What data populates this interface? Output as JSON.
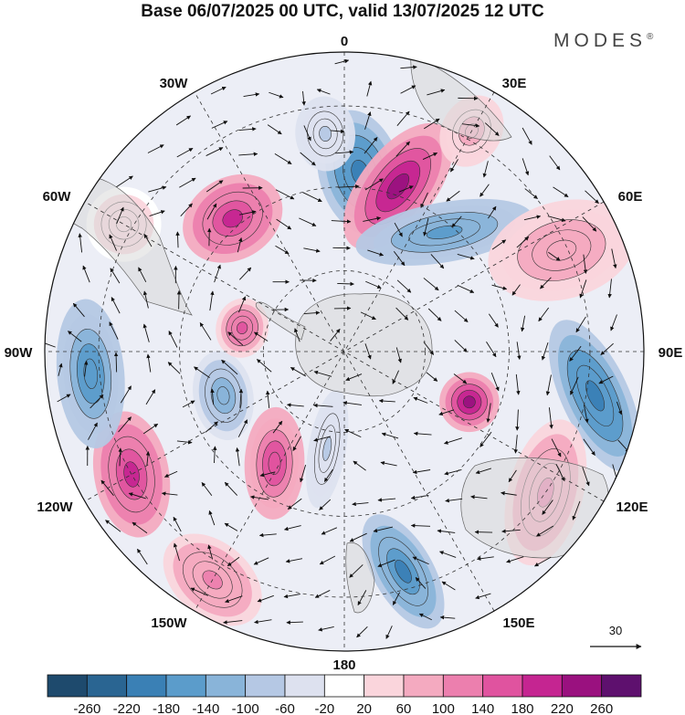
{
  "title": "Base 06/07/2025 00 UTC, valid 13/07/2025 12 UTC",
  "brand": {
    "name": "MODES",
    "mark": "®"
  },
  "map": {
    "projection": "south-polar-stereographic",
    "longitude_labels": [
      "0",
      "30E",
      "60E",
      "90E",
      "120E",
      "150E",
      "180",
      "150W",
      "120W",
      "90W",
      "60W",
      "30W"
    ],
    "field": "geopotential height anomaly with wind vectors",
    "reference_vector": {
      "value": "30"
    }
  },
  "colorbar": {
    "ticks": [
      "-260",
      "-220",
      "-180",
      "-140",
      "-100",
      "-60",
      "-20",
      "20",
      "60",
      "100",
      "140",
      "180",
      "220",
      "260"
    ],
    "colors": [
      "#1e4a6d",
      "#2a6592",
      "#3a80b5",
      "#5b9ccb",
      "#89b4d9",
      "#b5c8e4",
      "#dde1ef",
      "#ffffff",
      "#fad5dc",
      "#f4aac0",
      "#ec7fae",
      "#e0539f",
      "#c52591",
      "#9a117f",
      "#5e106e"
    ]
  },
  "anomalies": [
    {
      "lon": 5,
      "r": 0.6,
      "rx": 0.11,
      "ry": 0.17,
      "rot": -20,
      "v": -200
    },
    {
      "lon": 18,
      "r": 0.58,
      "rx": 0.1,
      "ry": 0.2,
      "rot": 20,
      "v": 230
    },
    {
      "lon": 40,
      "r": 0.52,
      "rx": 0.08,
      "ry": 0.24,
      "rot": 40,
      "v": -150
    },
    {
      "lon": 65,
      "r": 0.8,
      "rx": 0.13,
      "ry": 0.2,
      "rot": 10,
      "v": 90
    },
    {
      "lon": 100,
      "r": 0.85,
      "rx": 0.09,
      "ry": 0.22,
      "rot": 55,
      "v": -200
    },
    {
      "lon": 112,
      "r": 0.45,
      "rx": 0.08,
      "ry": 0.08,
      "rot": 0,
      "v": 240
    },
    {
      "lon": 125,
      "r": 0.82,
      "rx": 0.2,
      "ry": 0.1,
      "rot": -20,
      "v": 110
    },
    {
      "lon": 165,
      "r": 0.76,
      "rx": 0.08,
      "ry": 0.17,
      "rot": -15,
      "v": -190
    },
    {
      "lon": 190,
      "r": 0.33,
      "rx": 0.05,
      "ry": 0.16,
      "rot": 0,
      "v": -60
    },
    {
      "lon": 210,
      "r": 0.88,
      "rx": 0.15,
      "ry": 0.1,
      "rot": 10,
      "v": 110
    },
    {
      "lon": 212,
      "r": 0.44,
      "rx": 0.08,
      "ry": 0.15,
      "rot": -30,
      "v": 180
    },
    {
      "lon": 240,
      "r": 0.82,
      "rx": 0.17,
      "ry": 0.1,
      "rot": 20,
      "v": 190
    },
    {
      "lon": 250,
      "r": 0.43,
      "rx": 0.12,
      "ry": 0.08,
      "rot": 10,
      "v": -120
    },
    {
      "lon": 265,
      "r": 0.85,
      "rx": 0.2,
      "ry": 0.09,
      "rot": 0,
      "v": -170
    },
    {
      "lon": 283,
      "r": 0.35,
      "rx": 0.08,
      "ry": 0.07,
      "rot": 0,
      "v": 150
    },
    {
      "lon": 320,
      "r": 0.58,
      "rx": 0.14,
      "ry": 0.11,
      "rot": 10,
      "v": 190
    },
    {
      "lon": 355,
      "r": 0.73,
      "rx": 0.08,
      "ry": 0.1,
      "rot": 0,
      "v": -60
    },
    {
      "lon": 300,
      "r": 0.85,
      "rx": 0.1,
      "ry": 0.1,
      "rot": 0,
      "v": 40
    },
    {
      "lon": 30,
      "r": 0.85,
      "rx": 0.08,
      "ry": 0.1,
      "rot": 0,
      "v": 80
    }
  ]
}
